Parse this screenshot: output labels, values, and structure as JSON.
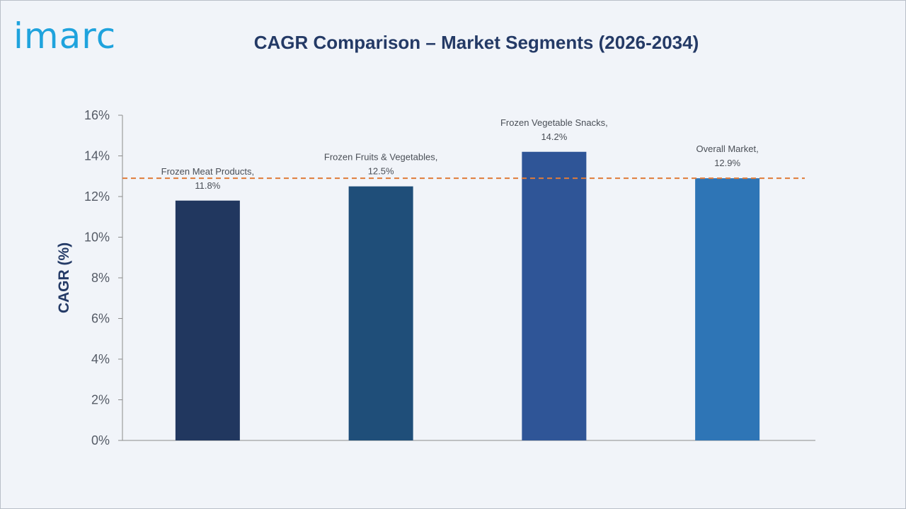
{
  "logo": {
    "text": "imarc"
  },
  "chart_data": {
    "type": "bar",
    "title": "CAGR Comparison – Market Segments (2026-2034)",
    "xlabel": "",
    "ylabel": "CAGR (%)",
    "ylim": [
      0,
      16
    ],
    "yticks": [
      {
        "value": 0,
        "label": "0%"
      },
      {
        "value": 2,
        "label": "2%"
      },
      {
        "value": 4,
        "label": "4%"
      },
      {
        "value": 6,
        "label": "6%"
      },
      {
        "value": 8,
        "label": "8%"
      },
      {
        "value": 10,
        "label": "10%"
      },
      {
        "value": 12,
        "label": "12%"
      },
      {
        "value": 14,
        "label": "14%"
      },
      {
        "value": 16,
        "label": "16%"
      }
    ],
    "categories": [
      "Frozen Meat Products",
      "Frozen Fruits & Vegetables",
      "Frozen Vegetable Snacks",
      "Overall Market"
    ],
    "values": [
      11.8,
      12.5,
      14.2,
      12.9
    ],
    "data_labels": [
      [
        "Frozen Meat Products,",
        "11.8%"
      ],
      [
        "Frozen Fruits & Vegetables,",
        "12.5%"
      ],
      [
        "Frozen Vegetable Snacks,",
        "14.2%"
      ],
      [
        "Overall Market,",
        "12.9%"
      ]
    ],
    "bar_colors": [
      "#21375f",
      "#1f4e79",
      "#2f5597",
      "#2e75b6"
    ],
    "reference_line": {
      "value": 12.9,
      "style": "dashed",
      "color": "#e07b39"
    },
    "grid": false,
    "legend": "none"
  }
}
